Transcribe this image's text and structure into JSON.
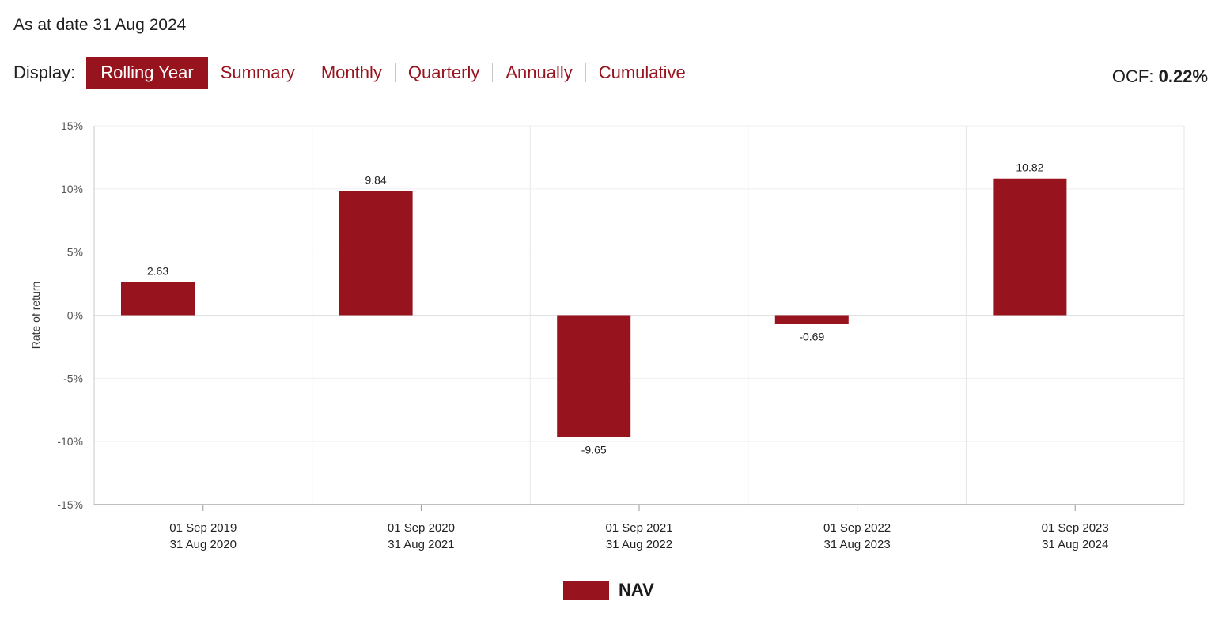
{
  "header": {
    "as_at": "As at date 31 Aug 2024",
    "display_label": "Display:",
    "tabs": [
      {
        "label": "Rolling Year",
        "active": true
      },
      {
        "label": "Summary",
        "active": false
      },
      {
        "label": "Monthly",
        "active": false
      },
      {
        "label": "Quarterly",
        "active": false
      },
      {
        "label": "Annually",
        "active": false
      },
      {
        "label": "Cumulative",
        "active": false
      }
    ],
    "ocf_label": "OCF:",
    "ocf_value": "0.22%"
  },
  "colors": {
    "accent": "#97131e",
    "grid": "#e6e6e6",
    "axis": "#9a9a9a"
  },
  "chart_data": {
    "type": "bar",
    "categories": [
      [
        "01 Sep 2019",
        "31 Aug 2020"
      ],
      [
        "01 Sep 2020",
        "31 Aug 2021"
      ],
      [
        "01 Sep 2021",
        "31 Aug 2022"
      ],
      [
        "01 Sep 2022",
        "31 Aug 2023"
      ],
      [
        "01 Sep 2023",
        "31 Aug 2024"
      ]
    ],
    "series": [
      {
        "name": "NAV",
        "values": [
          2.63,
          9.84,
          -9.65,
          -0.69,
          10.82
        ]
      }
    ],
    "data_labels": [
      "2.63",
      "9.84",
      "-9.65",
      "-0.69",
      "10.82"
    ],
    "ylabel": "Rate of return",
    "ylim": [
      -15,
      15
    ],
    "yticks": [
      15,
      10,
      5,
      0,
      -5,
      -10,
      -15
    ],
    "ytick_labels": [
      "15%",
      "10%",
      "5%",
      "0%",
      "-5%",
      "-10%",
      "-15%"
    ],
    "grid": true,
    "legend": "bottom-center"
  }
}
